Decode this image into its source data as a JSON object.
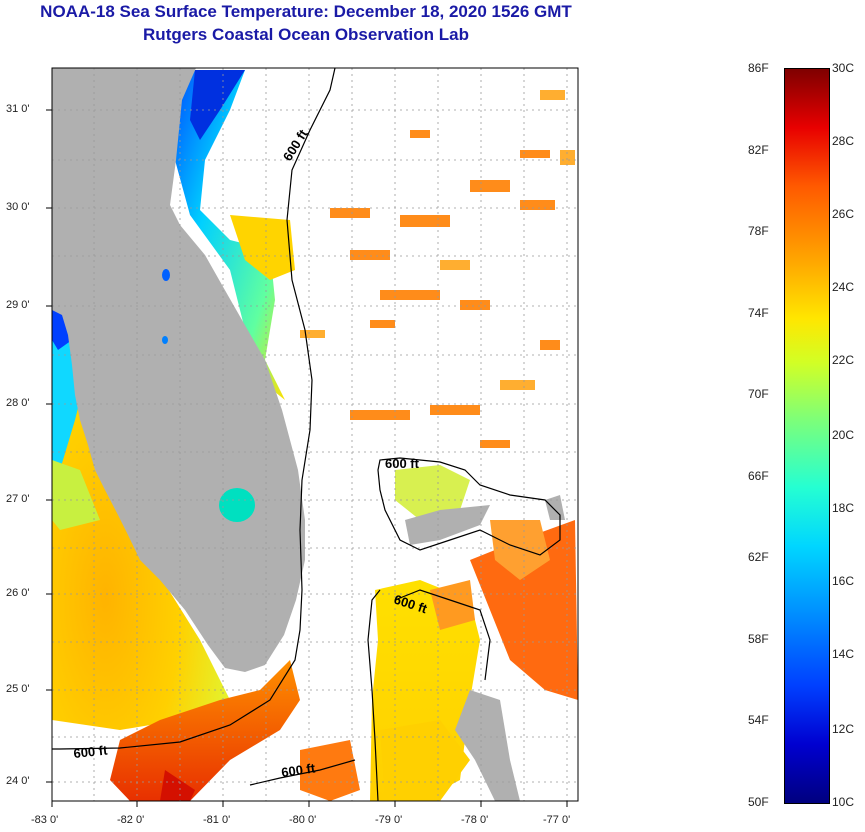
{
  "title": {
    "line1": "NOAA-18 Sea Surface Temperature:  December 18, 2020 1526 GMT",
    "line2": "Rutgers Coastal Ocean Observation Lab"
  },
  "map": {
    "lon_labels": [
      "-83 0'",
      "-82 0'",
      "-81 0'",
      "-80 0'",
      "-79 0'",
      "-78 0'",
      "-77 0'"
    ],
    "lat_labels": [
      "31 0'",
      "30 0'",
      "29 0'",
      "28 0'",
      "27 0'",
      "26 0'",
      "25 0'",
      "24 0'"
    ],
    "contour_label": "600 ft",
    "colors": {
      "land": "#b0b0b0",
      "no_data": "#ffffff",
      "contour": "#000000"
    }
  },
  "colorbar": {
    "fahrenheit": [
      "86F",
      "82F",
      "78F",
      "74F",
      "70F",
      "66F",
      "62F",
      "58F",
      "54F",
      "50F"
    ],
    "celsius": [
      "30C",
      "28C",
      "26C",
      "24C",
      "22C",
      "20C",
      "18C",
      "16C",
      "14C",
      "12C",
      "10C"
    ]
  }
}
